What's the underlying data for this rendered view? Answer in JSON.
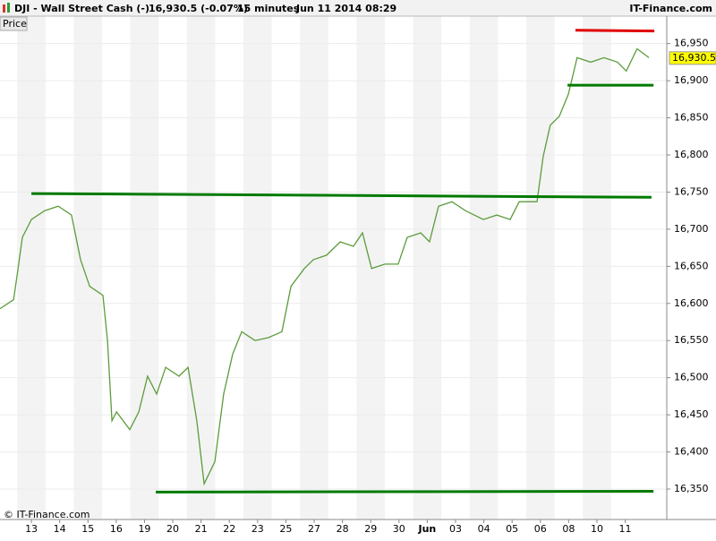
{
  "chart_data": {
    "type": "line",
    "title": "DJI - Wall Street Cash (-)",
    "quote": "16,930.5 (-0.07%)",
    "interval": "15 minutes",
    "timestamp": "Jun 11 2014 08:29",
    "brand": "IT-Finance.com",
    "panel_label": "Price",
    "copyright": "© IT-Finance.com",
    "last": {
      "value": 16930.5,
      "label": "16,930.5"
    },
    "xlim": [
      -1.11,
      22.47
    ],
    "xticks": [
      {
        "value": 0,
        "label": "13"
      },
      {
        "value": 1,
        "label": "14"
      },
      {
        "value": 2,
        "label": "15"
      },
      {
        "value": 3,
        "label": "16"
      },
      {
        "value": 4,
        "label": "19"
      },
      {
        "value": 5,
        "label": "20"
      },
      {
        "value": 6,
        "label": "21"
      },
      {
        "value": 7,
        "label": "22"
      },
      {
        "value": 8,
        "label": "23"
      },
      {
        "value": 9,
        "label": "25"
      },
      {
        "value": 10,
        "label": "27"
      },
      {
        "value": 11,
        "label": "28"
      },
      {
        "value": 12,
        "label": "29"
      },
      {
        "value": 13,
        "label": "30"
      },
      {
        "value": 14,
        "label": "Jun"
      },
      {
        "value": 15,
        "label": "03"
      },
      {
        "value": 16,
        "label": "04"
      },
      {
        "value": 17,
        "label": "05"
      },
      {
        "value": 18,
        "label": "06"
      },
      {
        "value": 19,
        "label": "08"
      },
      {
        "value": 20,
        "label": "10"
      },
      {
        "value": 21,
        "label": "11"
      }
    ],
    "ylim": [
      16309,
      16987
    ],
    "yticks": [
      {
        "value": 16350,
        "label": "16,350"
      },
      {
        "value": 16400,
        "label": "16,400"
      },
      {
        "value": 16450,
        "label": "16,450"
      },
      {
        "value": 16500,
        "label": "16,500"
      },
      {
        "value": 16550,
        "label": "16,550"
      },
      {
        "value": 16600,
        "label": "16,600"
      },
      {
        "value": 16650,
        "label": "16,650"
      },
      {
        "value": 16700,
        "label": "16,700"
      },
      {
        "value": 16750,
        "label": "16,750"
      },
      {
        "value": 16800,
        "label": "16,800"
      },
      {
        "value": 16850,
        "label": "16,850"
      },
      {
        "value": 16900,
        "label": "16,900"
      },
      {
        "value": 16950,
        "label": "16,950"
      }
    ],
    "series": [
      {
        "color": "#5c9c3c",
        "x": [
          -1.11,
          -0.63,
          -0.47,
          -0.32,
          0,
          0.47,
          0.95,
          1.42,
          1.74,
          2.06,
          2.53,
          2.69,
          2.85,
          3.01,
          3.48,
          3.8,
          4.11,
          4.43,
          4.75,
          5.22,
          5.54,
          5.85,
          6.11,
          6.49,
          6.8,
          7.12,
          7.44,
          7.91,
          8.39,
          8.86,
          9.18,
          9.65,
          9.97,
          10.44,
          10.92,
          11.39,
          11.71,
          12.03,
          12.5,
          12.97,
          13.29,
          13.77,
          14.08,
          14.4,
          14.87,
          15.35,
          15.98,
          16.46,
          16.93,
          17.25,
          17.88,
          18.1,
          18.35,
          18.67,
          18.99,
          19.3,
          19.78,
          20.25,
          20.73,
          21.04,
          21.42,
          21.84
        ],
        "values": [
          16593,
          16605,
          16647,
          16689,
          16713,
          16725,
          16731,
          16719,
          16659,
          16623,
          16611,
          16550,
          16442,
          16454,
          16430,
          16454,
          16502,
          16478,
          16514,
          16502,
          16514,
          16442,
          16357,
          16387,
          16478,
          16532,
          16562,
          16550,
          16554,
          16562,
          16623,
          16647,
          16659,
          16665,
          16683,
          16677,
          16695,
          16647,
          16653,
          16653,
          16689,
          16695,
          16683,
          16731,
          16737,
          16725,
          16713,
          16719,
          16713,
          16737,
          16737,
          16798,
          16840,
          16852,
          16882,
          16931,
          16925,
          16931,
          16925,
          16913,
          16943,
          16931
        ]
      }
    ],
    "lines": [
      {
        "color": "#007a00",
        "x": [
          0,
          21.93
        ],
        "y": [
          16748,
          16743
        ]
      },
      {
        "color": "#007a00",
        "x": [
          4.4,
          22
        ],
        "y": [
          16346,
          16347
        ]
      },
      {
        "color": "#007a00",
        "x": [
          18.96,
          22
        ],
        "y": [
          16894,
          16894
        ]
      },
      {
        "color": "#e00000",
        "x": [
          19.24,
          22.03
        ],
        "y": [
          16968,
          16967
        ]
      }
    ]
  }
}
